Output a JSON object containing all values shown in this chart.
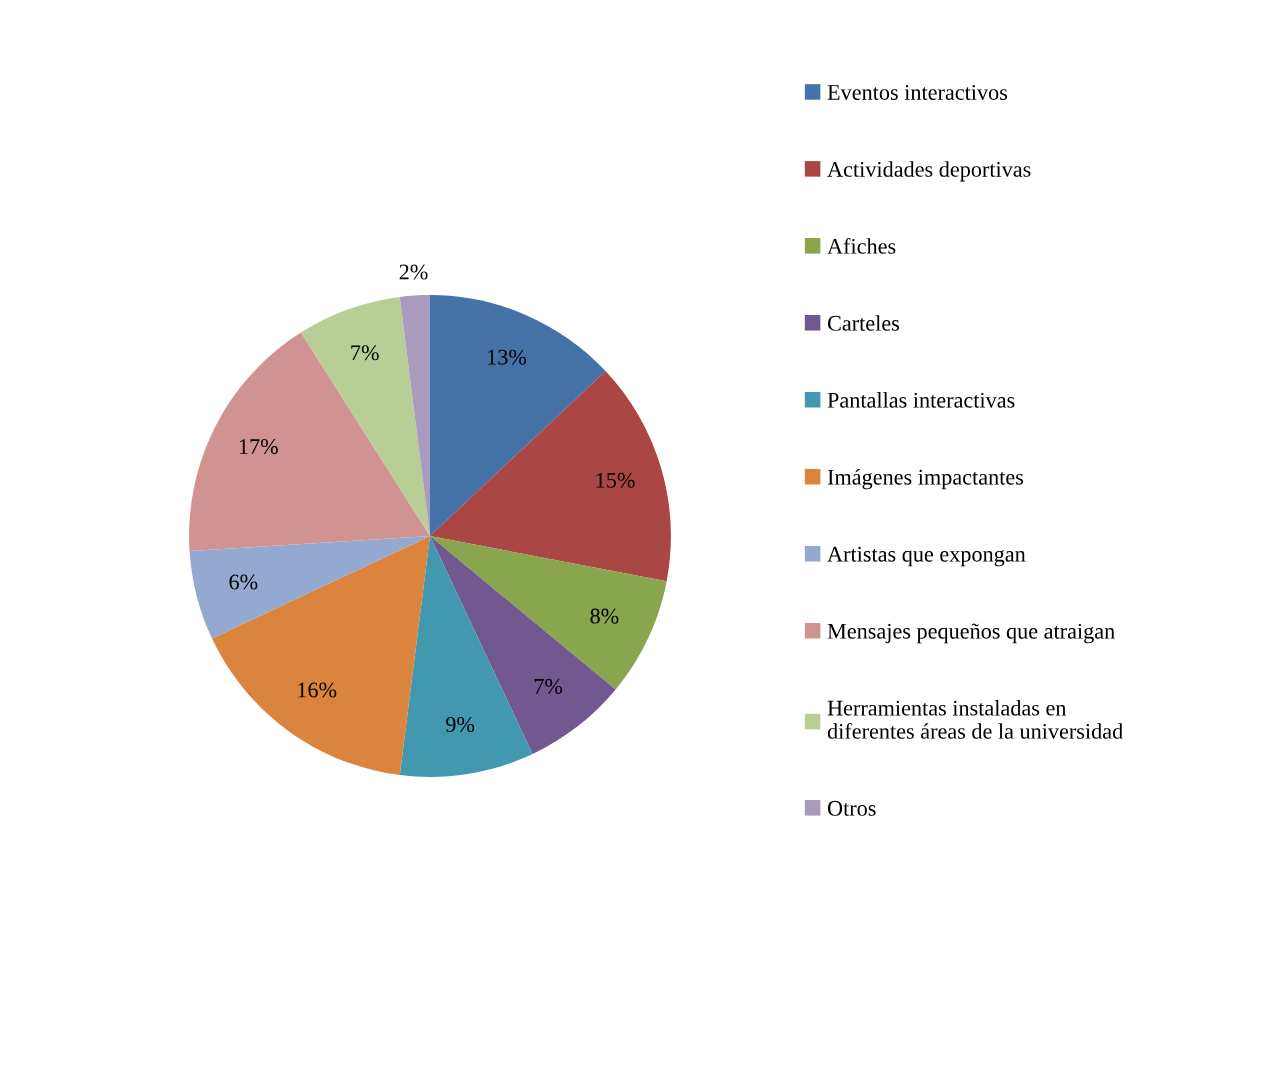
{
  "chart_data": {
    "type": "pie",
    "categories": [
      "Eventos interactivos",
      "Actividades deportivas",
      "Afiches",
      "Carteles",
      "Pantallas interactivas",
      "Imágenes impactantes",
      "Artistas que expongan",
      "Mensajes pequeños que atraigan",
      "Herramientas instaladas en\ndiferentes áreas de la universidad",
      "Otros"
    ],
    "values": [
      13,
      15,
      8,
      7,
      9,
      16,
      6,
      17,
      7,
      2
    ],
    "colors": [
      "#4572a7",
      "#aa4643",
      "#89a54e",
      "#71588f",
      "#4198af",
      "#db843d",
      "#93a9cf",
      "#d19392",
      "#b9cd96",
      "#a99bbd"
    ],
    "value_labels": [
      "13%",
      "15%",
      "8%",
      "7%",
      "9%",
      "16%",
      "6%",
      "17%",
      "7%",
      "2%"
    ],
    "legend": "right"
  }
}
